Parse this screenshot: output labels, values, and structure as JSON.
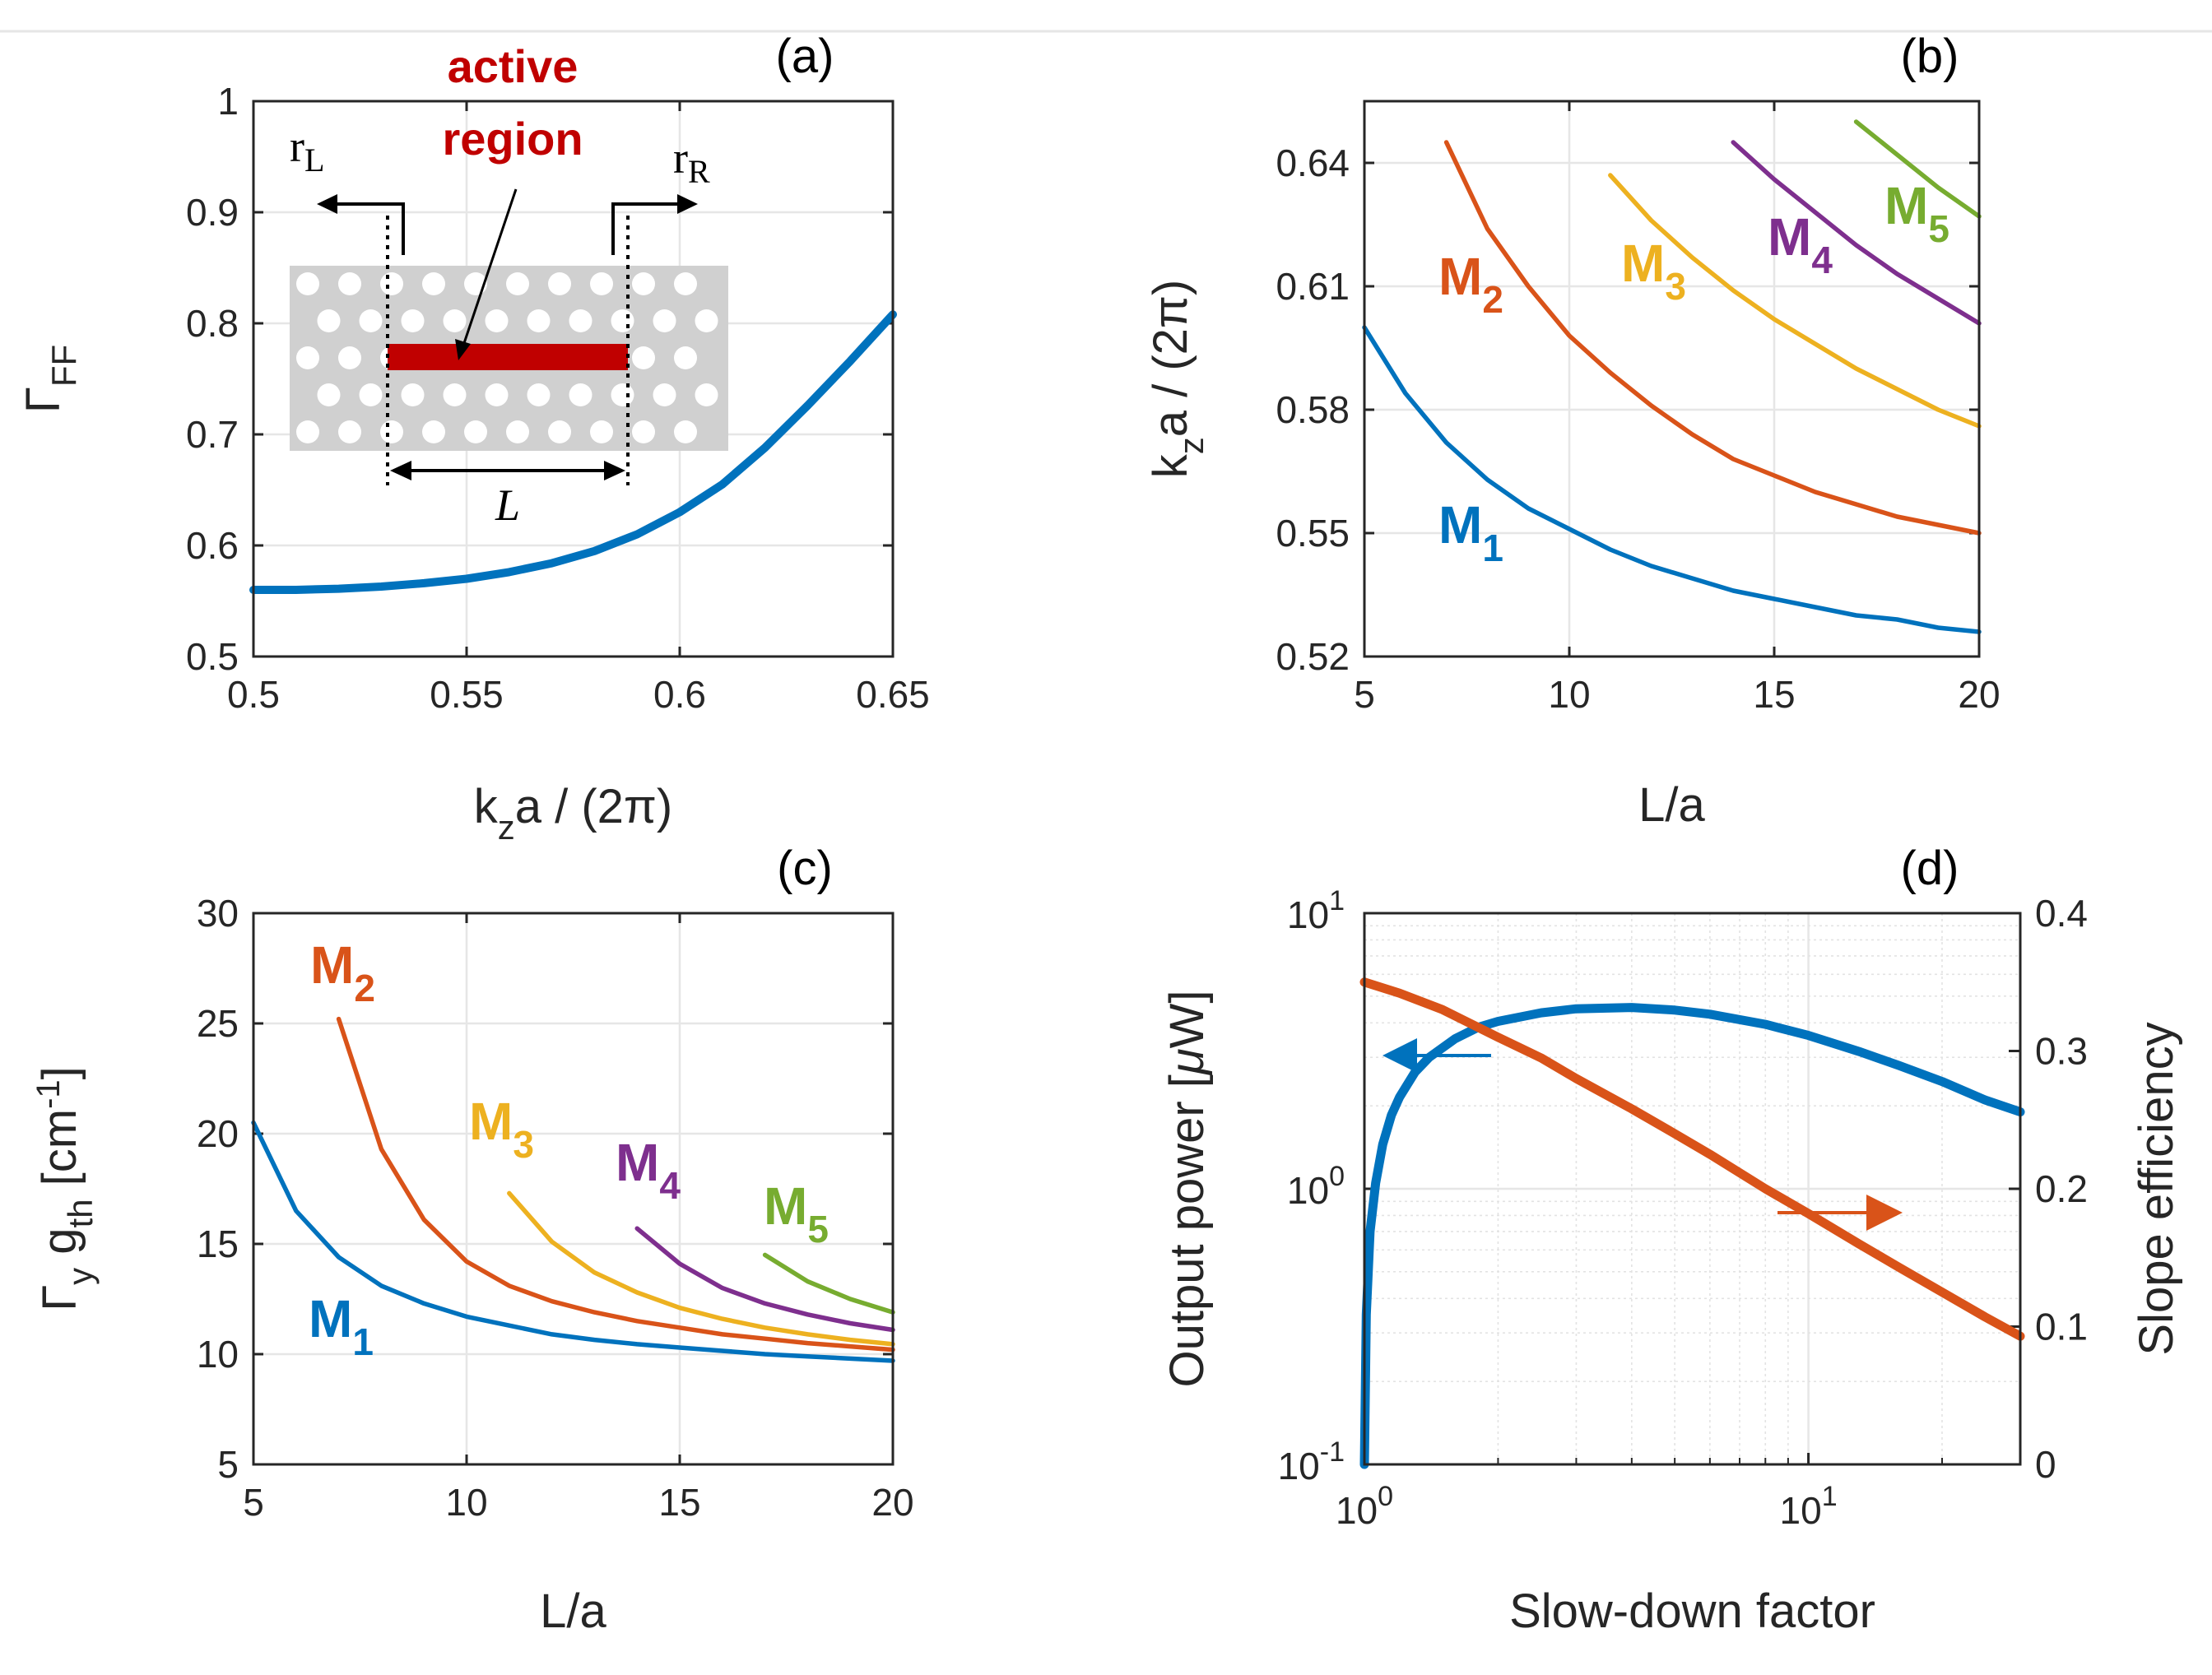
{
  "chart_data": [
    {
      "id": "a",
      "type": "line",
      "panel_label": "(a)",
      "xlabel": {
        "main": "k",
        "sub": "z",
        "rest": "a / (2π)"
      },
      "ylabel": {
        "main": "Γ",
        "sub": "FF"
      },
      "xlim": [
        0.5,
        0.65
      ],
      "ylim": [
        0.5,
        1.0
      ],
      "xticks": [
        0.5,
        0.55,
        0.6,
        0.65
      ],
      "xtick_labels": [
        "0.5",
        "0.55",
        "0.6",
        "0.65"
      ],
      "yticks": [
        0.5,
        0.6,
        0.7,
        0.8,
        0.9,
        1.0
      ],
      "ytick_labels": [
        "0.5",
        "0.6",
        "0.7",
        "0.8",
        "0.9",
        "1"
      ],
      "grid": true,
      "series": [
        {
          "name": "Γ_FF",
          "color": "#0072BD",
          "x": [
            0.5,
            0.51,
            0.52,
            0.53,
            0.54,
            0.55,
            0.56,
            0.57,
            0.58,
            0.59,
            0.6,
            0.61,
            0.62,
            0.63,
            0.64,
            0.65
          ],
          "y": [
            0.56,
            0.56,
            0.561,
            0.563,
            0.566,
            0.57,
            0.576,
            0.584,
            0.595,
            0.61,
            0.63,
            0.655,
            0.688,
            0.726,
            0.766,
            0.808
          ]
        }
      ],
      "inset": {
        "title_line1": "active",
        "title_line2": "region",
        "left_label_main": "r",
        "left_label_sub": "L",
        "right_label_main": "r",
        "right_label_sub": "R",
        "length_label": "L",
        "active_color": "#C00000",
        "slab_color": "#D0D0D0"
      }
    },
    {
      "id": "b",
      "type": "line",
      "panel_label": "(b)",
      "xlabel": {
        "main": "L/a"
      },
      "ylabel": {
        "main": "k",
        "sub": "z",
        "rest": "a / (2π)"
      },
      "xlim": [
        5,
        20
      ],
      "ylim": [
        0.52,
        0.655
      ],
      "xticks": [
        5,
        10,
        15,
        20
      ],
      "xtick_labels": [
        "5",
        "10",
        "15",
        "20"
      ],
      "yticks": [
        0.52,
        0.55,
        0.58,
        0.61,
        0.64
      ],
      "ytick_labels": [
        "0.52",
        "0.55",
        "0.58",
        "0.61",
        "0.64"
      ],
      "grid": true,
      "series": [
        {
          "name": "M1",
          "label_main": "M",
          "label_sub": "1",
          "color": "#0072BD",
          "x": [
            5,
            6,
            7,
            8,
            9,
            10,
            11,
            12,
            13,
            14,
            15,
            16,
            17,
            18,
            19,
            20
          ],
          "y": [
            0.6,
            0.584,
            0.572,
            0.563,
            0.556,
            0.551,
            0.546,
            0.542,
            0.539,
            0.536,
            0.534,
            0.532,
            0.53,
            0.529,
            0.527,
            0.526
          ]
        },
        {
          "name": "M2",
          "label_main": "M",
          "label_sub": "2",
          "color": "#D95319",
          "x": [
            7,
            8,
            9,
            10,
            11,
            12,
            13,
            14,
            15,
            16,
            17,
            18,
            19,
            20
          ],
          "y": [
            0.645,
            0.624,
            0.61,
            0.598,
            0.589,
            0.581,
            0.574,
            0.568,
            0.564,
            0.56,
            0.557,
            0.554,
            0.552,
            0.55
          ]
        },
        {
          "name": "M3",
          "label_main": "M",
          "label_sub": "3",
          "color": "#EDB120",
          "x": [
            11,
            12,
            13,
            14,
            15,
            16,
            17,
            18,
            19,
            20
          ],
          "y": [
            0.637,
            0.626,
            0.617,
            0.609,
            0.602,
            0.596,
            0.59,
            0.585,
            0.58,
            0.576
          ]
        },
        {
          "name": "M4",
          "label_main": "M",
          "label_sub": "4",
          "color": "#7E2F8E",
          "x": [
            14,
            15,
            16,
            17,
            18,
            19,
            20
          ],
          "y": [
            0.645,
            0.636,
            0.628,
            0.62,
            0.613,
            0.607,
            0.601
          ]
        },
        {
          "name": "M5",
          "label_main": "M",
          "label_sub": "5",
          "color": "#77AC30",
          "x": [
            17,
            18,
            19,
            20
          ],
          "y": [
            0.65,
            0.642,
            0.634,
            0.627
          ]
        }
      ]
    },
    {
      "id": "c",
      "type": "line",
      "panel_label": "(c)",
      "xlabel": {
        "main": "L/a"
      },
      "ylabel": {
        "main": "Γ",
        "sub": "y",
        "mid": " g",
        "sub2": "th",
        "rest": " [cm",
        "sup": "-1",
        "end": "]"
      },
      "xlim": [
        5,
        20
      ],
      "ylim": [
        5,
        30
      ],
      "xticks": [
        5,
        10,
        15,
        20
      ],
      "xtick_labels": [
        "5",
        "10",
        "15",
        "20"
      ],
      "yticks": [
        5,
        10,
        15,
        20,
        25,
        30
      ],
      "ytick_labels": [
        "5",
        "10",
        "15",
        "20",
        "25",
        "30"
      ],
      "grid": true,
      "series": [
        {
          "name": "M1",
          "label_main": "M",
          "label_sub": "1",
          "color": "#0072BD",
          "x": [
            5,
            6,
            7,
            8,
            9,
            10,
            11,
            12,
            13,
            14,
            15,
            16,
            17,
            18,
            19,
            20
          ],
          "y": [
            20.5,
            16.5,
            14.4,
            13.1,
            12.3,
            11.7,
            11.3,
            10.9,
            10.65,
            10.45,
            10.3,
            10.15,
            10.0,
            9.9,
            9.8,
            9.7
          ]
        },
        {
          "name": "M2",
          "label_main": "M",
          "label_sub": "2",
          "color": "#D95319",
          "x": [
            7,
            8,
            9,
            10,
            11,
            12,
            13,
            14,
            15,
            16,
            17,
            18,
            19,
            20
          ],
          "y": [
            25.2,
            19.3,
            16.1,
            14.2,
            13.1,
            12.4,
            11.9,
            11.5,
            11.2,
            10.9,
            10.7,
            10.5,
            10.35,
            10.2
          ]
        },
        {
          "name": "M3",
          "label_main": "M",
          "label_sub": "3",
          "color": "#EDB120",
          "x": [
            11,
            12,
            13,
            14,
            15,
            16,
            17,
            18,
            19,
            20
          ],
          "y": [
            17.3,
            15.1,
            13.7,
            12.8,
            12.1,
            11.6,
            11.2,
            10.9,
            10.65,
            10.45
          ]
        },
        {
          "name": "M4",
          "label_main": "M",
          "label_sub": "4",
          "color": "#7E2F8E",
          "x": [
            14,
            15,
            16,
            17,
            18,
            19,
            20
          ],
          "y": [
            15.7,
            14.1,
            13.0,
            12.3,
            11.8,
            11.4,
            11.1
          ]
        },
        {
          "name": "M5",
          "label_main": "M",
          "label_sub": "5",
          "color": "#77AC30",
          "x": [
            17,
            18,
            19,
            20
          ],
          "y": [
            14.5,
            13.3,
            12.5,
            11.9
          ]
        }
      ]
    },
    {
      "id": "d",
      "type": "line",
      "panel_label": "(d)",
      "xlabel": {
        "main": "Slow-down factor"
      },
      "ylabel": {
        "main": "Output power [",
        "mu": "μ",
        "rest": "W]"
      },
      "ylabel_right": {
        "main": "Slope efficiency"
      },
      "xscale": "log",
      "yscale_left": "log",
      "xlim": [
        1,
        30
      ],
      "ylim_left": [
        0.1,
        10
      ],
      "ylim_right": [
        0,
        0.4
      ],
      "xticks": [
        1,
        10
      ],
      "xtick_labels": [
        {
          "base": "10",
          "exp": "0"
        },
        {
          "base": "10",
          "exp": "1"
        }
      ],
      "yticks_left": [
        0.1,
        1,
        10
      ],
      "ytick_labels_left": [
        {
          "base": "10",
          "exp": "-1"
        },
        {
          "base": "10",
          "exp": "0"
        },
        {
          "base": "10",
          "exp": "1"
        }
      ],
      "yticks_right": [
        0,
        0.1,
        0.2,
        0.3,
        0.4
      ],
      "ytick_labels_right": [
        "0",
        "0.1",
        "0.2",
        "0.3",
        "0.4"
      ],
      "grid": true,
      "minor_grid": true,
      "series": [
        {
          "name": "Output power",
          "axis": "left",
          "color": "#0072BD",
          "x": [
            1.0,
            1.01,
            1.03,
            1.06,
            1.1,
            1.15,
            1.2,
            1.3,
            1.4,
            1.6,
            1.8,
            2.0,
            2.5,
            3.0,
            4.0,
            5.0,
            6.0,
            8.0,
            10,
            13,
            16,
            20,
            25,
            30
          ],
          "y": [
            0.1,
            0.35,
            0.7,
            1.05,
            1.45,
            1.85,
            2.15,
            2.65,
            3.0,
            3.5,
            3.85,
            4.05,
            4.35,
            4.5,
            4.55,
            4.45,
            4.3,
            3.95,
            3.6,
            3.15,
            2.8,
            2.45,
            2.1,
            1.9
          ]
        },
        {
          "name": "Slope efficiency",
          "axis": "right",
          "color": "#D95319",
          "x": [
            1.0,
            1.2,
            1.5,
            2.0,
            2.5,
            3.0,
            4.0,
            5.0,
            6.0,
            8.0,
            10,
            13,
            16,
            20,
            25,
            30
          ],
          "y": [
            0.35,
            0.342,
            0.33,
            0.31,
            0.295,
            0.28,
            0.258,
            0.24,
            0.225,
            0.2,
            0.182,
            0.16,
            0.143,
            0.125,
            0.107,
            0.093
          ]
        }
      ]
    }
  ]
}
